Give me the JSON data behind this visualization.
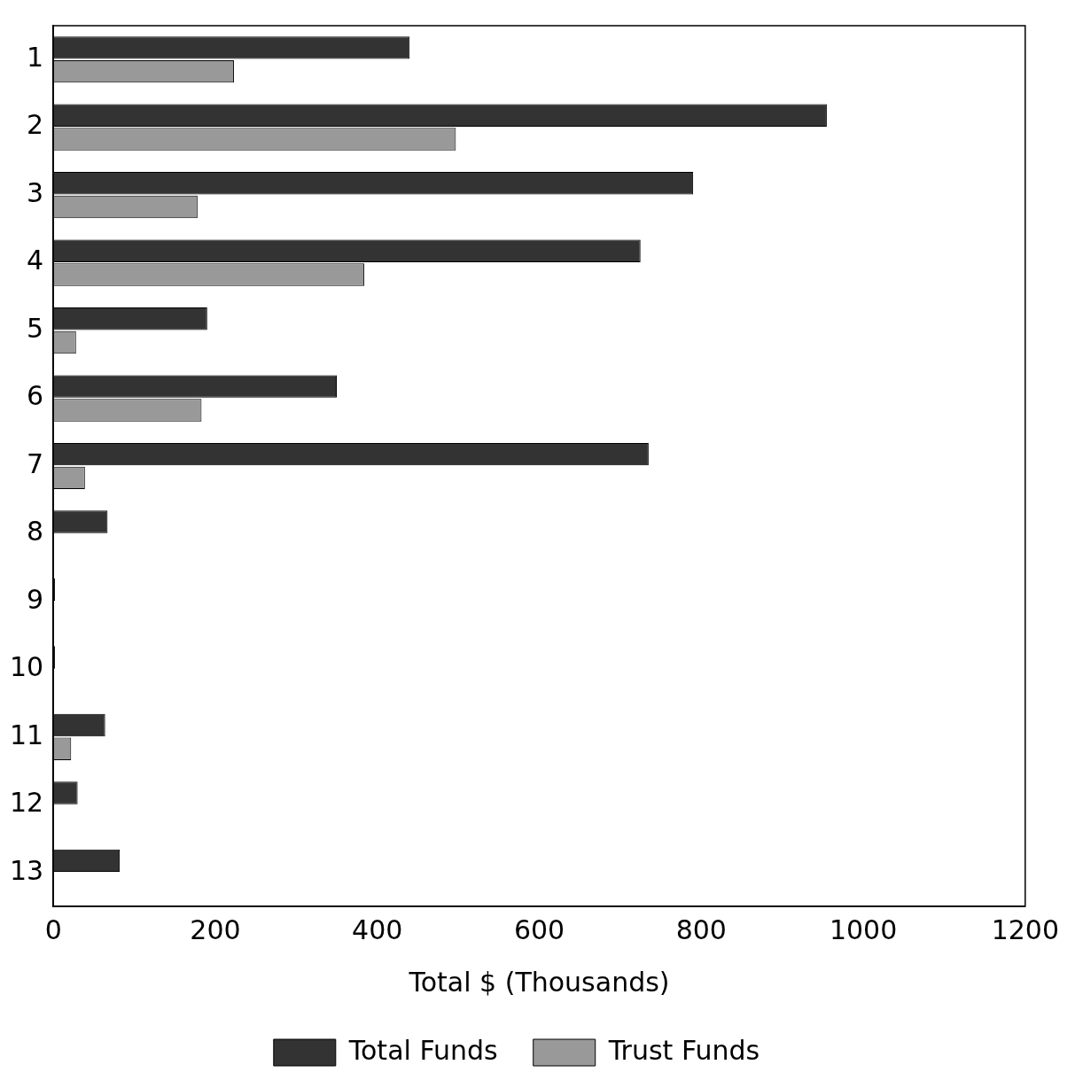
{
  "chart_data": {
    "type": "bar",
    "orientation": "horizontal",
    "xlabel": "Total $ (Thousands)",
    "categories": [
      "1",
      "2",
      "3",
      "4",
      "5",
      "6",
      "7",
      "8",
      "9",
      "10",
      "11",
      "12",
      "13"
    ],
    "series": [
      {
        "name": "Total Funds",
        "color": "#333333",
        "values": [
          440,
          955,
          790,
          725,
          190,
          350,
          735,
          67,
          2,
          2,
          64,
          30,
          82
        ]
      },
      {
        "name": "Trust Funds",
        "color": "#999999",
        "values": [
          223,
          497,
          178,
          384,
          28,
          183,
          39,
          0,
          0,
          0,
          22,
          0,
          0
        ]
      }
    ],
    "xlim": [
      0,
      1200
    ],
    "xticks": [
      0,
      200,
      400,
      600,
      800,
      1000,
      1200
    ],
    "grid": false,
    "legend": "bottom"
  }
}
